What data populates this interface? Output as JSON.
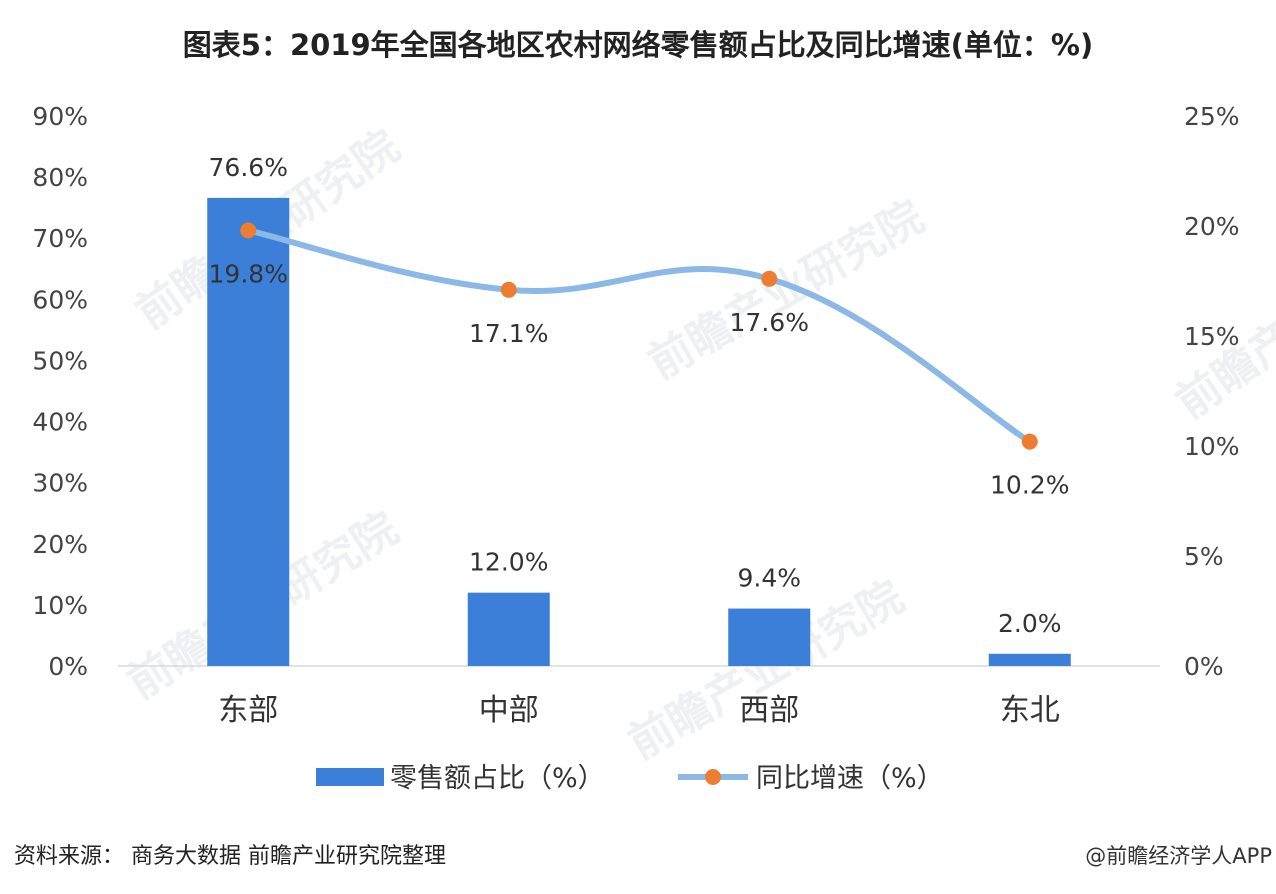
{
  "title": "图表5：2019年全国各地区农村网络零售额占比及同比增速(单位：%)",
  "source": "资料来源：  商务大数据  前瞻产业研究院整理",
  "credit": "@前瞻经济学人APP",
  "watermark": "前瞻产业研究院",
  "chart_data": {
    "type": "bar",
    "categories": [
      "东部",
      "中部",
      "西部",
      "东北"
    ],
    "series": [
      {
        "name": "零售额占比（%）",
        "type": "bar",
        "axis": "left",
        "values": [
          76.6,
          12.0,
          9.4,
          2.0
        ],
        "labels": [
          "76.6%",
          "12.0%",
          "9.4%",
          "2.0%"
        ],
        "color": "#3b7fd9"
      },
      {
        "name": "同比增速（%）",
        "type": "line",
        "axis": "right",
        "values": [
          19.8,
          17.1,
          17.6,
          10.2
        ],
        "labels": [
          "19.8%",
          "17.1%",
          "17.6%",
          "10.2%"
        ],
        "color": "#8cb8e6",
        "marker_color": "#ed7d31"
      }
    ],
    "y_left": {
      "min": 0,
      "max": 90,
      "ticks": [
        "0%",
        "10%",
        "20%",
        "30%",
        "40%",
        "50%",
        "60%",
        "70%",
        "80%",
        "90%"
      ]
    },
    "y_right": {
      "min": 0,
      "max": 25,
      "ticks": [
        "0%",
        "5%",
        "10%",
        "15%",
        "20%",
        "25%"
      ]
    },
    "legend_position": "bottom",
    "grid": false
  }
}
